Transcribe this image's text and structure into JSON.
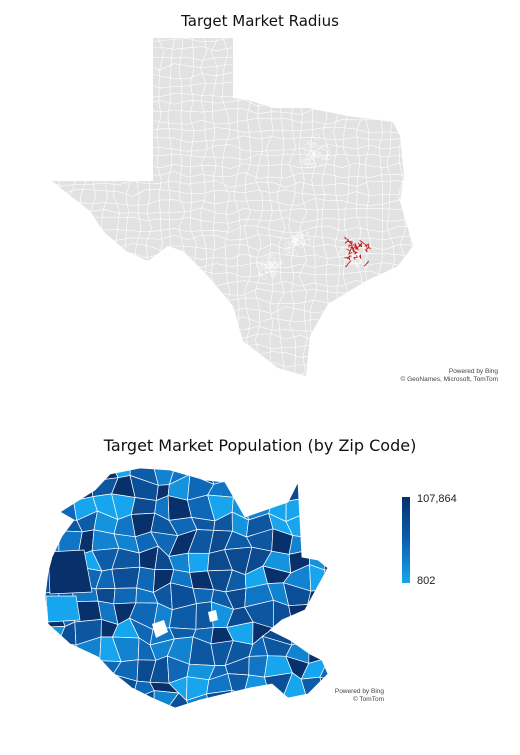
{
  "maps": {
    "top": {
      "title": "Target Market Radius",
      "attribution_line1": "Powered by Bing",
      "attribution_line2": "© GeoNames, Microsoft, TomTom",
      "fill_color": "#e2e2e2",
      "border_color": "#ffffff",
      "highlight_color": "#c41a1a"
    },
    "bottom": {
      "title": "Target Market Population (by Zip Code)",
      "attribution_line1": "Powered by Bing",
      "attribution_line2": "© TomTom",
      "legend": {
        "max_label": "107,864",
        "min_label": "802",
        "color_max": "#08306b",
        "color_mid": "#0a60ae",
        "color_min": "#16a5ee"
      }
    }
  }
}
